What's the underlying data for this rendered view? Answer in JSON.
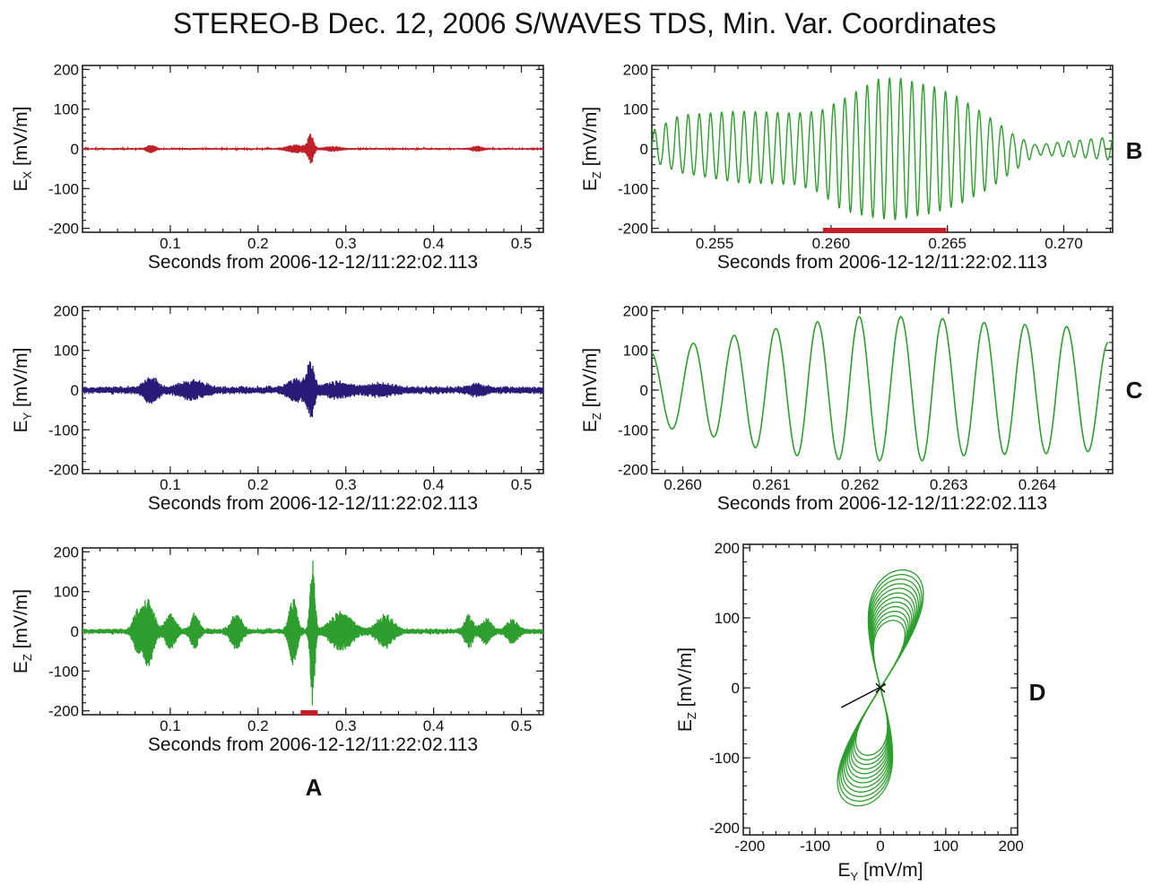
{
  "figure_title": "STEREO-B  Dec. 12, 2006  S/WAVES TDS, Min. Var. Coordinates",
  "colors": {
    "ex": "#c0202a",
    "ey": "#2a1a78",
    "ez": "#2e9e2e",
    "bar": "#c0202a",
    "axis": "#222222"
  },
  "panel_labels": {
    "a": "A",
    "b": "B",
    "c": "C",
    "d": "D"
  },
  "chart_data": [
    {
      "id": "ex",
      "type": "line",
      "color": "#c0202a",
      "ylabel_main": "E",
      "ylabel_sub": "X",
      "ylabel_unit": " [mV/m]",
      "xlabel": "Seconds from 2006-12-12/11:22:02.113",
      "xlim": [
        0.0,
        0.525
      ],
      "ylim": [
        -210,
        210
      ],
      "xticks": [
        0.1,
        0.2,
        0.3,
        0.4,
        0.5
      ],
      "xtick_labels": [
        "0.1",
        "0.2",
        "0.3",
        "0.4",
        "0.5"
      ],
      "yticks": [
        -200,
        -100,
        0,
        100,
        200
      ],
      "ytick_labels": [
        "-200",
        "-100",
        "0",
        "100",
        "200"
      ],
      "bursts": [
        {
          "t": 0.078,
          "w": 0.006,
          "amp": 10,
          "f": 2000
        },
        {
          "t": 0.26,
          "w": 0.004,
          "amp": 36,
          "f": 2000
        },
        {
          "t": 0.245,
          "w": 0.015,
          "amp": 9,
          "f": 2000
        },
        {
          "t": 0.285,
          "w": 0.012,
          "amp": 5,
          "f": 2000
        },
        {
          "t": 0.45,
          "w": 0.008,
          "amp": 6,
          "f": 2000
        }
      ],
      "noise": 2
    },
    {
      "id": "ey",
      "type": "line",
      "color": "#2a1a78",
      "ylabel_main": "E",
      "ylabel_sub": "Y",
      "ylabel_unit": " [mV/m]",
      "xlabel": "Seconds from 2006-12-12/11:22:02.113",
      "xlim": [
        0.0,
        0.525
      ],
      "ylim": [
        -210,
        210
      ],
      "xticks": [
        0.1,
        0.2,
        0.3,
        0.4,
        0.5
      ],
      "xtick_labels": [
        "0.1",
        "0.2",
        "0.3",
        "0.4",
        "0.5"
      ],
      "yticks": [
        -200,
        -100,
        0,
        100,
        200
      ],
      "ytick_labels": [
        "-200",
        "-100",
        "0",
        "100",
        "200"
      ],
      "bursts": [
        {
          "t": 0.078,
          "w": 0.01,
          "amp": 30,
          "f": 2000
        },
        {
          "t": 0.125,
          "w": 0.018,
          "amp": 18,
          "f": 2000
        },
        {
          "t": 0.26,
          "w": 0.005,
          "amp": 62,
          "f": 2000
        },
        {
          "t": 0.245,
          "w": 0.014,
          "amp": 22,
          "f": 2000
        },
        {
          "t": 0.29,
          "w": 0.02,
          "amp": 14,
          "f": 2000
        },
        {
          "t": 0.34,
          "w": 0.02,
          "amp": 10,
          "f": 2000
        },
        {
          "t": 0.45,
          "w": 0.012,
          "amp": 10,
          "f": 2000
        }
      ],
      "noise": 8
    },
    {
      "id": "ez",
      "type": "line",
      "color": "#2e9e2e",
      "ylabel_main": "E",
      "ylabel_sub": "Z",
      "ylabel_unit": " [mV/m]",
      "xlabel": "Seconds from 2006-12-12/11:22:02.113",
      "xlim": [
        0.0,
        0.525
      ],
      "ylim": [
        -210,
        210
      ],
      "xticks": [
        0.1,
        0.2,
        0.3,
        0.4,
        0.5
      ],
      "xtick_labels": [
        "0.1",
        "0.2",
        "0.3",
        "0.4",
        "0.5"
      ],
      "yticks": [
        -200,
        -100,
        0,
        100,
        200
      ],
      "ytick_labels": [
        "-200",
        "-100",
        "0",
        "100",
        "200"
      ],
      "bursts": [
        {
          "t": 0.075,
          "w": 0.008,
          "amp": 88,
          "f": 2000
        },
        {
          "t": 0.062,
          "w": 0.006,
          "amp": 45,
          "f": 2000
        },
        {
          "t": 0.1,
          "w": 0.008,
          "amp": 40,
          "f": 2000
        },
        {
          "t": 0.128,
          "w": 0.006,
          "amp": 42,
          "f": 2000
        },
        {
          "t": 0.175,
          "w": 0.008,
          "amp": 42,
          "f": 2000
        },
        {
          "t": 0.24,
          "w": 0.006,
          "amp": 80,
          "f": 2000
        },
        {
          "t": 0.262,
          "w": 0.0035,
          "amp": 182,
          "f": 2000
        },
        {
          "t": 0.295,
          "w": 0.016,
          "amp": 45,
          "f": 2000
        },
        {
          "t": 0.345,
          "w": 0.012,
          "amp": 38,
          "f": 2000
        },
        {
          "t": 0.44,
          "w": 0.006,
          "amp": 40,
          "f": 2000
        },
        {
          "t": 0.46,
          "w": 0.008,
          "amp": 30,
          "f": 2000
        },
        {
          "t": 0.49,
          "w": 0.008,
          "amp": 28,
          "f": 2000
        }
      ],
      "noise": 6,
      "highlight": {
        "x0": 0.2485,
        "x1": 0.268,
        "color": "#c0202a"
      }
    },
    {
      "id": "ez_zoom1",
      "type": "line",
      "color": "#2e9e2e",
      "ylabel_main": "E",
      "ylabel_sub": "Z",
      "ylabel_unit": " [mV/m]",
      "xlabel": "Seconds from 2006-12-12/11:22:02.113",
      "xlim": [
        0.2523,
        0.2721
      ],
      "ylim": [
        -210,
        210
      ],
      "xticks": [
        0.255,
        0.26,
        0.265,
        0.27
      ],
      "xtick_labels": [
        "0.255",
        "0.260",
        "0.265",
        "0.270"
      ],
      "yticks": [
        -200,
        -100,
        0,
        100,
        200
      ],
      "ytick_labels": [
        "-200",
        "-100",
        "0",
        "100",
        "200"
      ],
      "freq": 2080,
      "envelope": {
        "t": [
          0.2523,
          0.2535,
          0.256,
          0.2585,
          0.2595,
          0.2605,
          0.262,
          0.2628,
          0.2645,
          0.2655,
          0.2668,
          0.268,
          0.2688,
          0.2703,
          0.2721
        ],
        "pos": [
          45,
          85,
          95,
          90,
          95,
          125,
          175,
          180,
          155,
          130,
          80,
          30,
          10,
          20,
          30
        ],
        "neg": [
          -30,
          -60,
          -85,
          -90,
          -110,
          -155,
          -175,
          -178,
          -160,
          -140,
          -100,
          -50,
          -15,
          -20,
          -28
        ]
      },
      "highlight": {
        "x0": 0.25965,
        "x1": 0.26495,
        "color": "#c0202a"
      }
    },
    {
      "id": "ez_zoom2",
      "type": "line",
      "color": "#2e9e2e",
      "ylabel_main": "E",
      "ylabel_sub": "Z",
      "ylabel_unit": " [mV/m]",
      "xlabel": "Seconds from 2006-12-12/11:22:02.113",
      "xlim": [
        0.25965,
        0.26485
      ],
      "ylim": [
        -210,
        210
      ],
      "xticks": [
        0.26,
        0.261,
        0.262,
        0.263,
        0.264
      ],
      "xtick_labels": [
        "0.260",
        "0.261",
        "0.262",
        "0.263",
        "0.264"
      ],
      "yticks": [
        -200,
        -100,
        0,
        100,
        200
      ],
      "ytick_labels": [
        "-200",
        "-100",
        "0",
        "100",
        "200"
      ],
      "peaks_t": [
        0.25964,
        0.26012,
        0.26058,
        0.26105,
        0.26152,
        0.26199,
        0.26246,
        0.26293,
        0.2634,
        0.26386,
        0.26433,
        0.2648
      ],
      "peaks_v": [
        95,
        118,
        138,
        155,
        172,
        185,
        185,
        180,
        170,
        165,
        160,
        120
      ],
      "troughs_t": [
        0.25988,
        0.26035,
        0.26082,
        0.26129,
        0.26176,
        0.26222,
        0.2627,
        0.26317,
        0.26363,
        0.2641,
        0.26457
      ],
      "troughs_v": [
        -98,
        -118,
        -145,
        -165,
        -175,
        -178,
        -178,
        -165,
        -162,
        -160,
        -155
      ]
    },
    {
      "id": "hodogram",
      "type": "scatter",
      "color": "#2e9e2e",
      "xlabel_main": "E",
      "xlabel_sub": "Y",
      "xlabel_unit": " [mV/m]",
      "ylabel_main": "E",
      "ylabel_sub": "Z",
      "ylabel_unit": " [mV/m]",
      "xlim": [
        -210,
        210
      ],
      "ylim": [
        -210,
        205
      ],
      "xticks": [
        -200,
        -100,
        0,
        100,
        200
      ],
      "xtick_labels": [
        "-200",
        "-100",
        "0",
        "100",
        "200"
      ],
      "yticks": [
        -200,
        -100,
        0,
        100,
        200
      ],
      "ytick_labels": [
        "-200",
        "-100",
        "0",
        "100",
        "200"
      ],
      "minvar_line": {
        "x": [
          -60,
          8
        ],
        "y": [
          -28,
          5
        ]
      },
      "cross": {
        "x": 0,
        "y": 0
      }
    }
  ]
}
